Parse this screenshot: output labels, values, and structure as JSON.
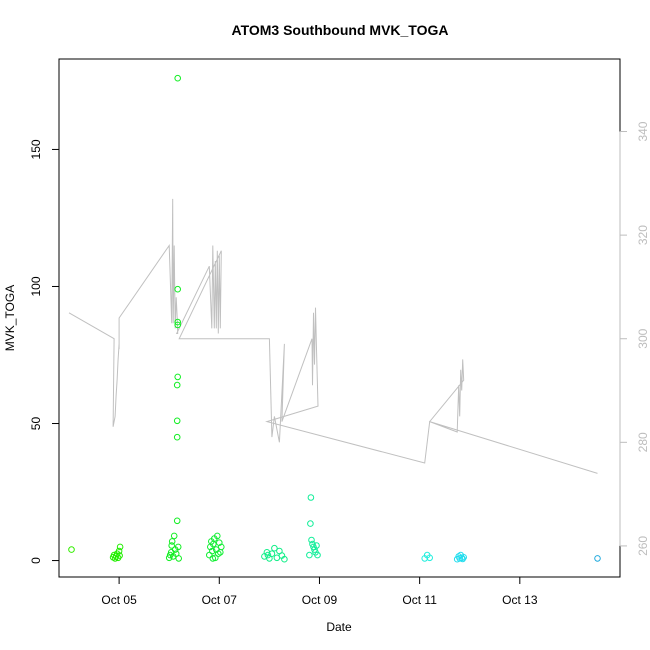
{
  "chart_data": {
    "type": "scatter",
    "title": "ATOM3 Southbound MVK_TOGA",
    "xlabel": "Date",
    "ylabel": "MVK_TOGA",
    "x_ticks": [
      "Oct 05",
      "Oct 07",
      "Oct 09",
      "Oct 11",
      "Oct 13"
    ],
    "x_tick_values": [
      5,
      7,
      9,
      11,
      13
    ],
    "xlim": [
      3.8,
      15.0
    ],
    "ylim": [
      -6,
      183
    ],
    "y_ticks": [
      0,
      50,
      100,
      150
    ],
    "y2_ticks": [
      260,
      280,
      300,
      320,
      340
    ],
    "y2lim": [
      254,
      354
    ],
    "grid": false,
    "series": [
      {
        "kind": "points",
        "color_scale": "green-to-blue by date",
        "points": [
          {
            "x": 4.05,
            "y": 4.0,
            "color": "#33ee00"
          },
          {
            "x": 4.88,
            "y": 1.2,
            "color": "#22ee00"
          },
          {
            "x": 4.9,
            "y": 2.0,
            "color": "#22ee00"
          },
          {
            "x": 4.92,
            "y": 0.8,
            "color": "#22ee00"
          },
          {
            "x": 4.94,
            "y": 1.5,
            "color": "#22ee00"
          },
          {
            "x": 4.96,
            "y": 2.5,
            "color": "#22ee00"
          },
          {
            "x": 4.98,
            "y": 1.0,
            "color": "#22ee00"
          },
          {
            "x": 5.0,
            "y": 3.5,
            "color": "#22ee00"
          },
          {
            "x": 5.02,
            "y": 5.0,
            "color": "#22ee00"
          },
          {
            "x": 5.01,
            "y": 1.8,
            "color": "#22ee00"
          },
          {
            "x": 6.0,
            "y": 1.0,
            "color": "#11ee22"
          },
          {
            "x": 6.02,
            "y": 2.0,
            "color": "#11ee22"
          },
          {
            "x": 6.04,
            "y": 3.0,
            "color": "#11ee22"
          },
          {
            "x": 6.05,
            "y": 5.5,
            "color": "#11ee22"
          },
          {
            "x": 6.06,
            "y": 7.0,
            "color": "#11ee22"
          },
          {
            "x": 6.08,
            "y": 1.5,
            "color": "#11ee22"
          },
          {
            "x": 6.1,
            "y": 9.0,
            "color": "#11ee22"
          },
          {
            "x": 6.12,
            "y": 4.0,
            "color": "#11ee22"
          },
          {
            "x": 6.14,
            "y": 2.5,
            "color": "#11ee22"
          },
          {
            "x": 6.16,
            "y": 14.5,
            "color": "#11ee22"
          },
          {
            "x": 6.16,
            "y": 45.0,
            "color": "#11ee22"
          },
          {
            "x": 6.16,
            "y": 51.0,
            "color": "#11ee22"
          },
          {
            "x": 6.16,
            "y": 64.0,
            "color": "#11ee22"
          },
          {
            "x": 6.17,
            "y": 67.0,
            "color": "#11ee22"
          },
          {
            "x": 6.17,
            "y": 86.0,
            "color": "#11ee22"
          },
          {
            "x": 6.17,
            "y": 87.0,
            "color": "#11ee22"
          },
          {
            "x": 6.17,
            "y": 99.0,
            "color": "#11ee22"
          },
          {
            "x": 6.17,
            "y": 176.0,
            "color": "#11ee22"
          },
          {
            "x": 6.18,
            "y": 5.0,
            "color": "#11ee22"
          },
          {
            "x": 6.19,
            "y": 0.8,
            "color": "#11ee22"
          },
          {
            "x": 6.8,
            "y": 2.0,
            "color": "#11ee33"
          },
          {
            "x": 6.82,
            "y": 5.0,
            "color": "#11ee33"
          },
          {
            "x": 6.84,
            "y": 7.0,
            "color": "#11ee33"
          },
          {
            "x": 6.86,
            "y": 3.5,
            "color": "#11ee33"
          },
          {
            "x": 6.88,
            "y": 6.0,
            "color": "#11ee33"
          },
          {
            "x": 6.9,
            "y": 8.0,
            "color": "#11ee33"
          },
          {
            "x": 6.92,
            "y": 1.0,
            "color": "#11ee33"
          },
          {
            "x": 6.94,
            "y": 4.0,
            "color": "#11ee33"
          },
          {
            "x": 6.96,
            "y": 9.0,
            "color": "#11ee33"
          },
          {
            "x": 6.98,
            "y": 2.5,
            "color": "#11ee33"
          },
          {
            "x": 7.0,
            "y": 6.5,
            "color": "#11ee33"
          },
          {
            "x": 7.02,
            "y": 3.0,
            "color": "#11ee33"
          },
          {
            "x": 7.04,
            "y": 5.0,
            "color": "#11ee33"
          },
          {
            "x": 6.87,
            "y": 0.8,
            "color": "#11ee33"
          },
          {
            "x": 7.9,
            "y": 1.5,
            "color": "#11ee88"
          },
          {
            "x": 7.95,
            "y": 3.0,
            "color": "#11ee88"
          },
          {
            "x": 8.0,
            "y": 0.8,
            "color": "#11ee88"
          },
          {
            "x": 8.05,
            "y": 2.5,
            "color": "#11ee88"
          },
          {
            "x": 8.1,
            "y": 4.5,
            "color": "#11ee88"
          },
          {
            "x": 8.15,
            "y": 1.0,
            "color": "#11ee88"
          },
          {
            "x": 8.2,
            "y": 3.5,
            "color": "#11ee88"
          },
          {
            "x": 8.25,
            "y": 1.8,
            "color": "#11ee88"
          },
          {
            "x": 8.3,
            "y": 0.5,
            "color": "#11ee88"
          },
          {
            "x": 7.97,
            "y": 2.0,
            "color": "#11ee88"
          },
          {
            "x": 8.8,
            "y": 2.0,
            "color": "#11ee99"
          },
          {
            "x": 8.82,
            "y": 13.5,
            "color": "#11ee99"
          },
          {
            "x": 8.83,
            "y": 23.0,
            "color": "#11ee99"
          },
          {
            "x": 8.84,
            "y": 7.5,
            "color": "#11ee99"
          },
          {
            "x": 8.86,
            "y": 6.0,
            "color": "#11ee99"
          },
          {
            "x": 8.88,
            "y": 5.0,
            "color": "#11ee99"
          },
          {
            "x": 8.9,
            "y": 4.0,
            "color": "#11ee99"
          },
          {
            "x": 8.92,
            "y": 3.0,
            "color": "#11ee99"
          },
          {
            "x": 8.94,
            "y": 5.5,
            "color": "#11ee99"
          },
          {
            "x": 8.96,
            "y": 2.0,
            "color": "#11ee99"
          },
          {
            "x": 11.1,
            "y": 0.8,
            "color": "#22eedd"
          },
          {
            "x": 11.15,
            "y": 2.0,
            "color": "#22eedd"
          },
          {
            "x": 11.2,
            "y": 1.0,
            "color": "#22eedd"
          },
          {
            "x": 11.75,
            "y": 0.5,
            "color": "#22ddee"
          },
          {
            "x": 11.78,
            "y": 1.5,
            "color": "#22ddee"
          },
          {
            "x": 11.8,
            "y": 0.8,
            "color": "#22ddee"
          },
          {
            "x": 11.82,
            "y": 2.0,
            "color": "#22ddee"
          },
          {
            "x": 11.84,
            "y": 1.0,
            "color": "#22ddee"
          },
          {
            "x": 11.86,
            "y": 0.6,
            "color": "#22ddee"
          },
          {
            "x": 11.88,
            "y": 1.2,
            "color": "#22ddee"
          },
          {
            "x": 14.55,
            "y": 0.8,
            "color": "#22aadd"
          }
        ]
      },
      {
        "kind": "line",
        "axis": "right",
        "color": "#c0c0c0",
        "x": [
          4.0,
          4.9,
          4.88,
          4.92,
          4.94,
          4.96,
          4.98,
          5.0,
          5.0,
          5.0,
          6.0,
          6.05,
          6.07,
          6.08,
          6.1,
          6.12,
          6.14,
          6.16,
          6.17,
          6.15,
          6.8,
          6.85,
          6.87,
          6.9,
          6.92,
          6.94,
          6.96,
          6.98,
          7.0,
          7.02,
          7.04,
          6.2,
          8.0,
          8.05,
          8.1,
          8.2,
          8.3,
          8.25,
          8.85,
          8.86,
          8.88,
          8.9,
          8.92,
          8.94,
          8.97,
          7.95,
          11.1,
          11.2,
          11.75,
          11.78,
          11.8,
          11.82,
          11.84,
          11.86,
          11.88,
          11.2,
          14.55
        ],
        "y": [
          305,
          300,
          283,
          285,
          289,
          292,
          296,
          299,
          298,
          304,
          318,
          303,
          327,
          303,
          318,
          302,
          308,
          304,
          301,
          301,
          314,
          302,
          318,
          302,
          315,
          302,
          317,
          301,
          316,
          302,
          317,
          300,
          300,
          281,
          285,
          280,
          299,
          284,
          300,
          291,
          305,
          295,
          306,
          298,
          287,
          284,
          276,
          284,
          282,
          291,
          285,
          294,
          290,
          296,
          292,
          284,
          274
        ]
      }
    ]
  }
}
